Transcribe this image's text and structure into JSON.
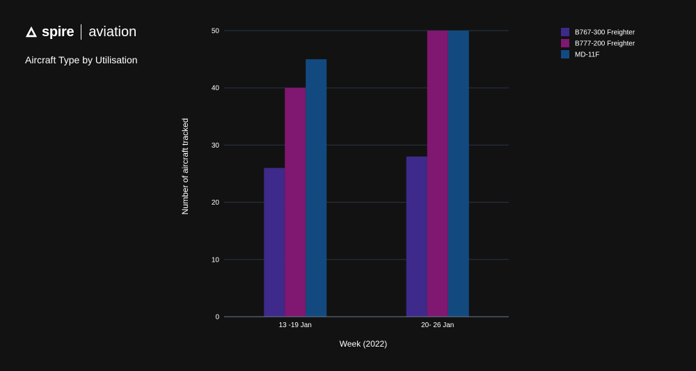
{
  "brand": {
    "name": "spire",
    "sub": "aviation"
  },
  "chart_data": {
    "type": "bar",
    "title": "Aircraft Type by Utilisation",
    "xlabel": "Week (2022)",
    "ylabel": "Number of aircraft tracked",
    "categories": [
      "13 -19 Jan",
      "20- 26 Jan"
    ],
    "series": [
      {
        "name": "B767-300 Freighter",
        "color": "#3e2a8a",
        "values": [
          26,
          28
        ]
      },
      {
        "name": "B777-200 Freighter",
        "color": "#801770",
        "values": [
          40,
          50
        ]
      },
      {
        "name": "MD-11F",
        "color": "#124a80",
        "values": [
          45,
          50
        ]
      }
    ],
    "ylim": [
      0,
      50
    ],
    "yticks": [
      0,
      10,
      20,
      30,
      40,
      50
    ],
    "grid": true,
    "legend": "top-right"
  },
  "colors": {
    "background": "#121212",
    "grid": "#2b3547",
    "text": "#ffffff"
  }
}
